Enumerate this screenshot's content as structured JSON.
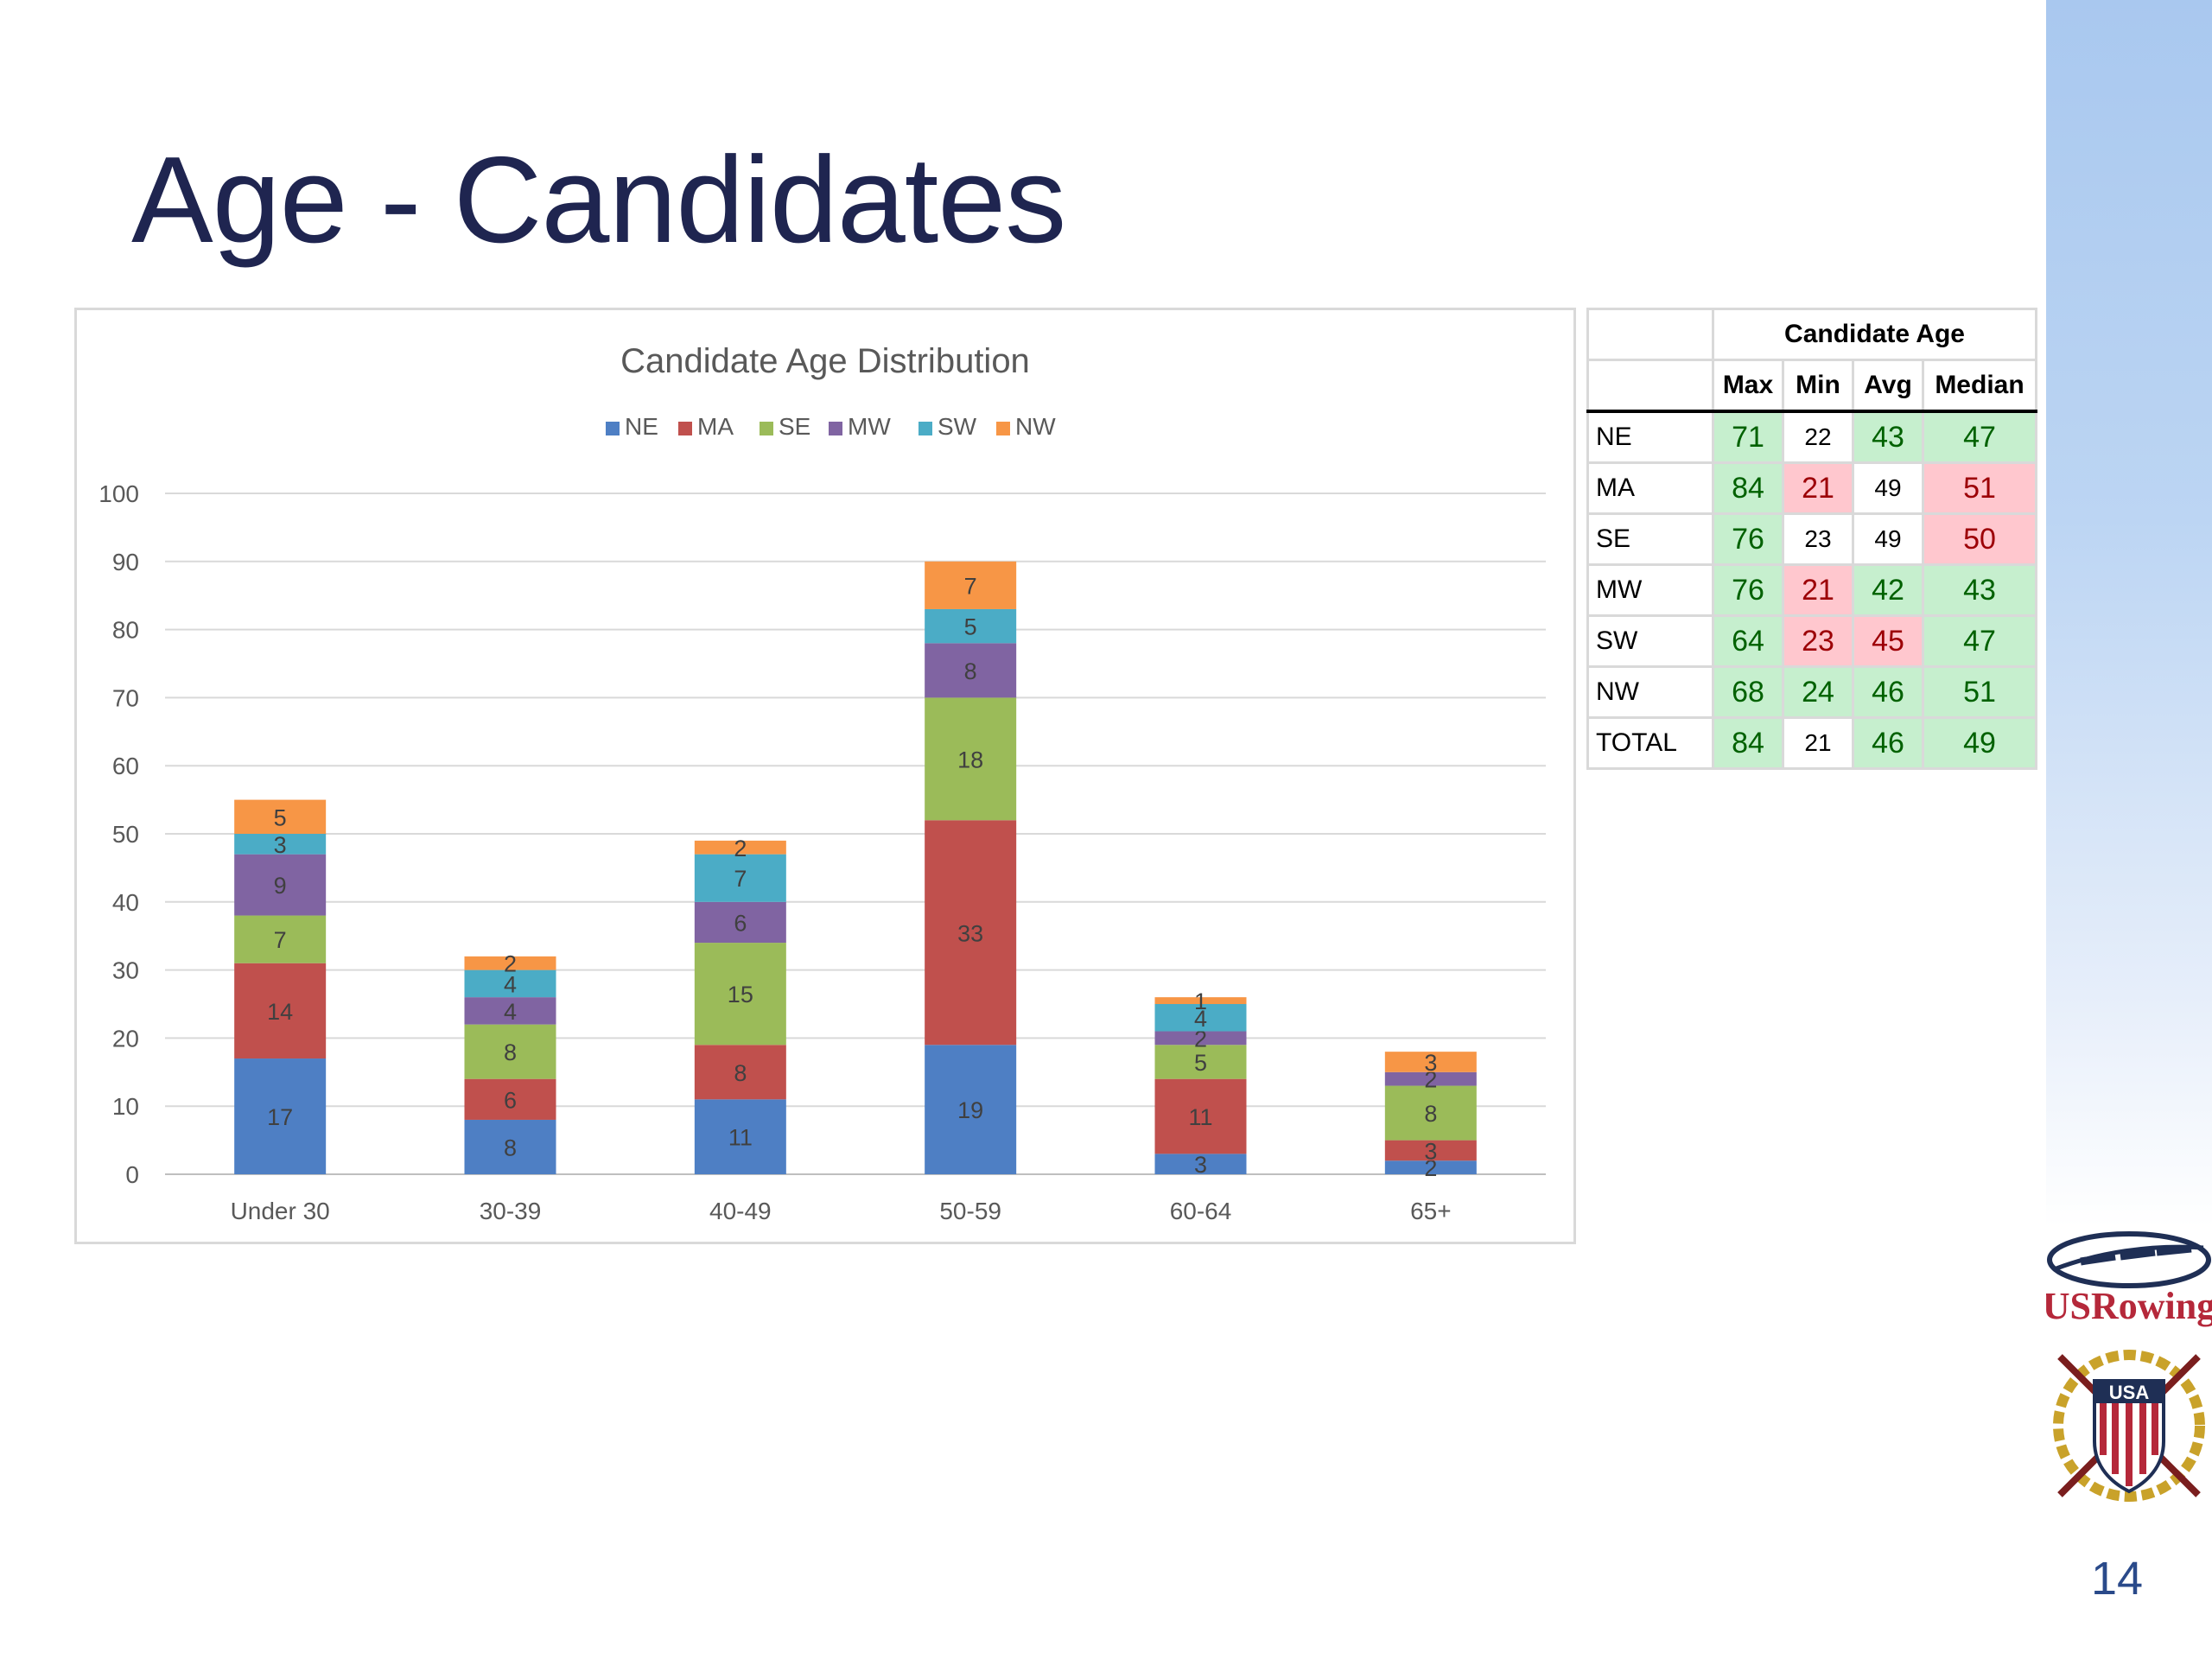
{
  "title": "Age - Candidates",
  "page_number": "14",
  "logo_text": "USRowing",
  "badge_text": "USA",
  "colors": {
    "title": "#1f2550",
    "NE": "#4e7fc4",
    "MA": "#c0504d",
    "SE": "#9bbb59",
    "MW": "#8064a2",
    "SW": "#4bacc6",
    "NW": "#f79646"
  },
  "chart_data": {
    "type": "bar",
    "stacked": true,
    "title": "Candidate Age Distribution",
    "categories": [
      "Under 30",
      "30-39",
      "40-49",
      "50-59",
      "60-64",
      "65+"
    ],
    "series": [
      {
        "name": "NE",
        "values": [
          17,
          8,
          11,
          19,
          3,
          2
        ]
      },
      {
        "name": "MA",
        "values": [
          14,
          6,
          8,
          33,
          11,
          3
        ]
      },
      {
        "name": "SE",
        "values": [
          7,
          8,
          15,
          18,
          5,
          8
        ]
      },
      {
        "name": "MW",
        "values": [
          9,
          4,
          6,
          8,
          2,
          2
        ]
      },
      {
        "name": "SW",
        "values": [
          3,
          4,
          7,
          5,
          4,
          0
        ]
      },
      {
        "name": "NW",
        "values": [
          5,
          2,
          2,
          7,
          1,
          3
        ]
      }
    ],
    "ylim": [
      0,
      100
    ],
    "yticks": [
      0,
      10,
      20,
      30,
      40,
      50,
      60,
      70,
      80,
      90,
      100
    ],
    "legend": "top",
    "grid": true,
    "xlabel": "",
    "ylabel": ""
  },
  "table": {
    "title": "Candidate Age",
    "headers": [
      "Max",
      "Min",
      "Avg",
      "Median"
    ],
    "rows": [
      {
        "label": "NE",
        "cells": [
          {
            "v": "71",
            "s": "g"
          },
          {
            "v": "22",
            "s": "w"
          },
          {
            "v": "43",
            "s": "g"
          },
          {
            "v": "47",
            "s": "g"
          }
        ]
      },
      {
        "label": "MA",
        "cells": [
          {
            "v": "84",
            "s": "g"
          },
          {
            "v": "21",
            "s": "r"
          },
          {
            "v": "49",
            "s": "w"
          },
          {
            "v": "51",
            "s": "r"
          }
        ]
      },
      {
        "label": "SE",
        "cells": [
          {
            "v": "76",
            "s": "g"
          },
          {
            "v": "23",
            "s": "w"
          },
          {
            "v": "49",
            "s": "w"
          },
          {
            "v": "50",
            "s": "r"
          }
        ]
      },
      {
        "label": "MW",
        "cells": [
          {
            "v": "76",
            "s": "g"
          },
          {
            "v": "21",
            "s": "r"
          },
          {
            "v": "42",
            "s": "g"
          },
          {
            "v": "43",
            "s": "g"
          }
        ]
      },
      {
        "label": "SW",
        "cells": [
          {
            "v": "64",
            "s": "g"
          },
          {
            "v": "23",
            "s": "r"
          },
          {
            "v": "45",
            "s": "r"
          },
          {
            "v": "47",
            "s": "g"
          }
        ]
      },
      {
        "label": "NW",
        "cells": [
          {
            "v": "68",
            "s": "g"
          },
          {
            "v": "24",
            "s": "g"
          },
          {
            "v": "46",
            "s": "g"
          },
          {
            "v": "51",
            "s": "g"
          }
        ]
      },
      {
        "label": "TOTAL",
        "cells": [
          {
            "v": "84",
            "s": "g"
          },
          {
            "v": "21",
            "s": "w"
          },
          {
            "v": "46",
            "s": "g"
          },
          {
            "v": "49",
            "s": "g"
          }
        ]
      }
    ]
  }
}
